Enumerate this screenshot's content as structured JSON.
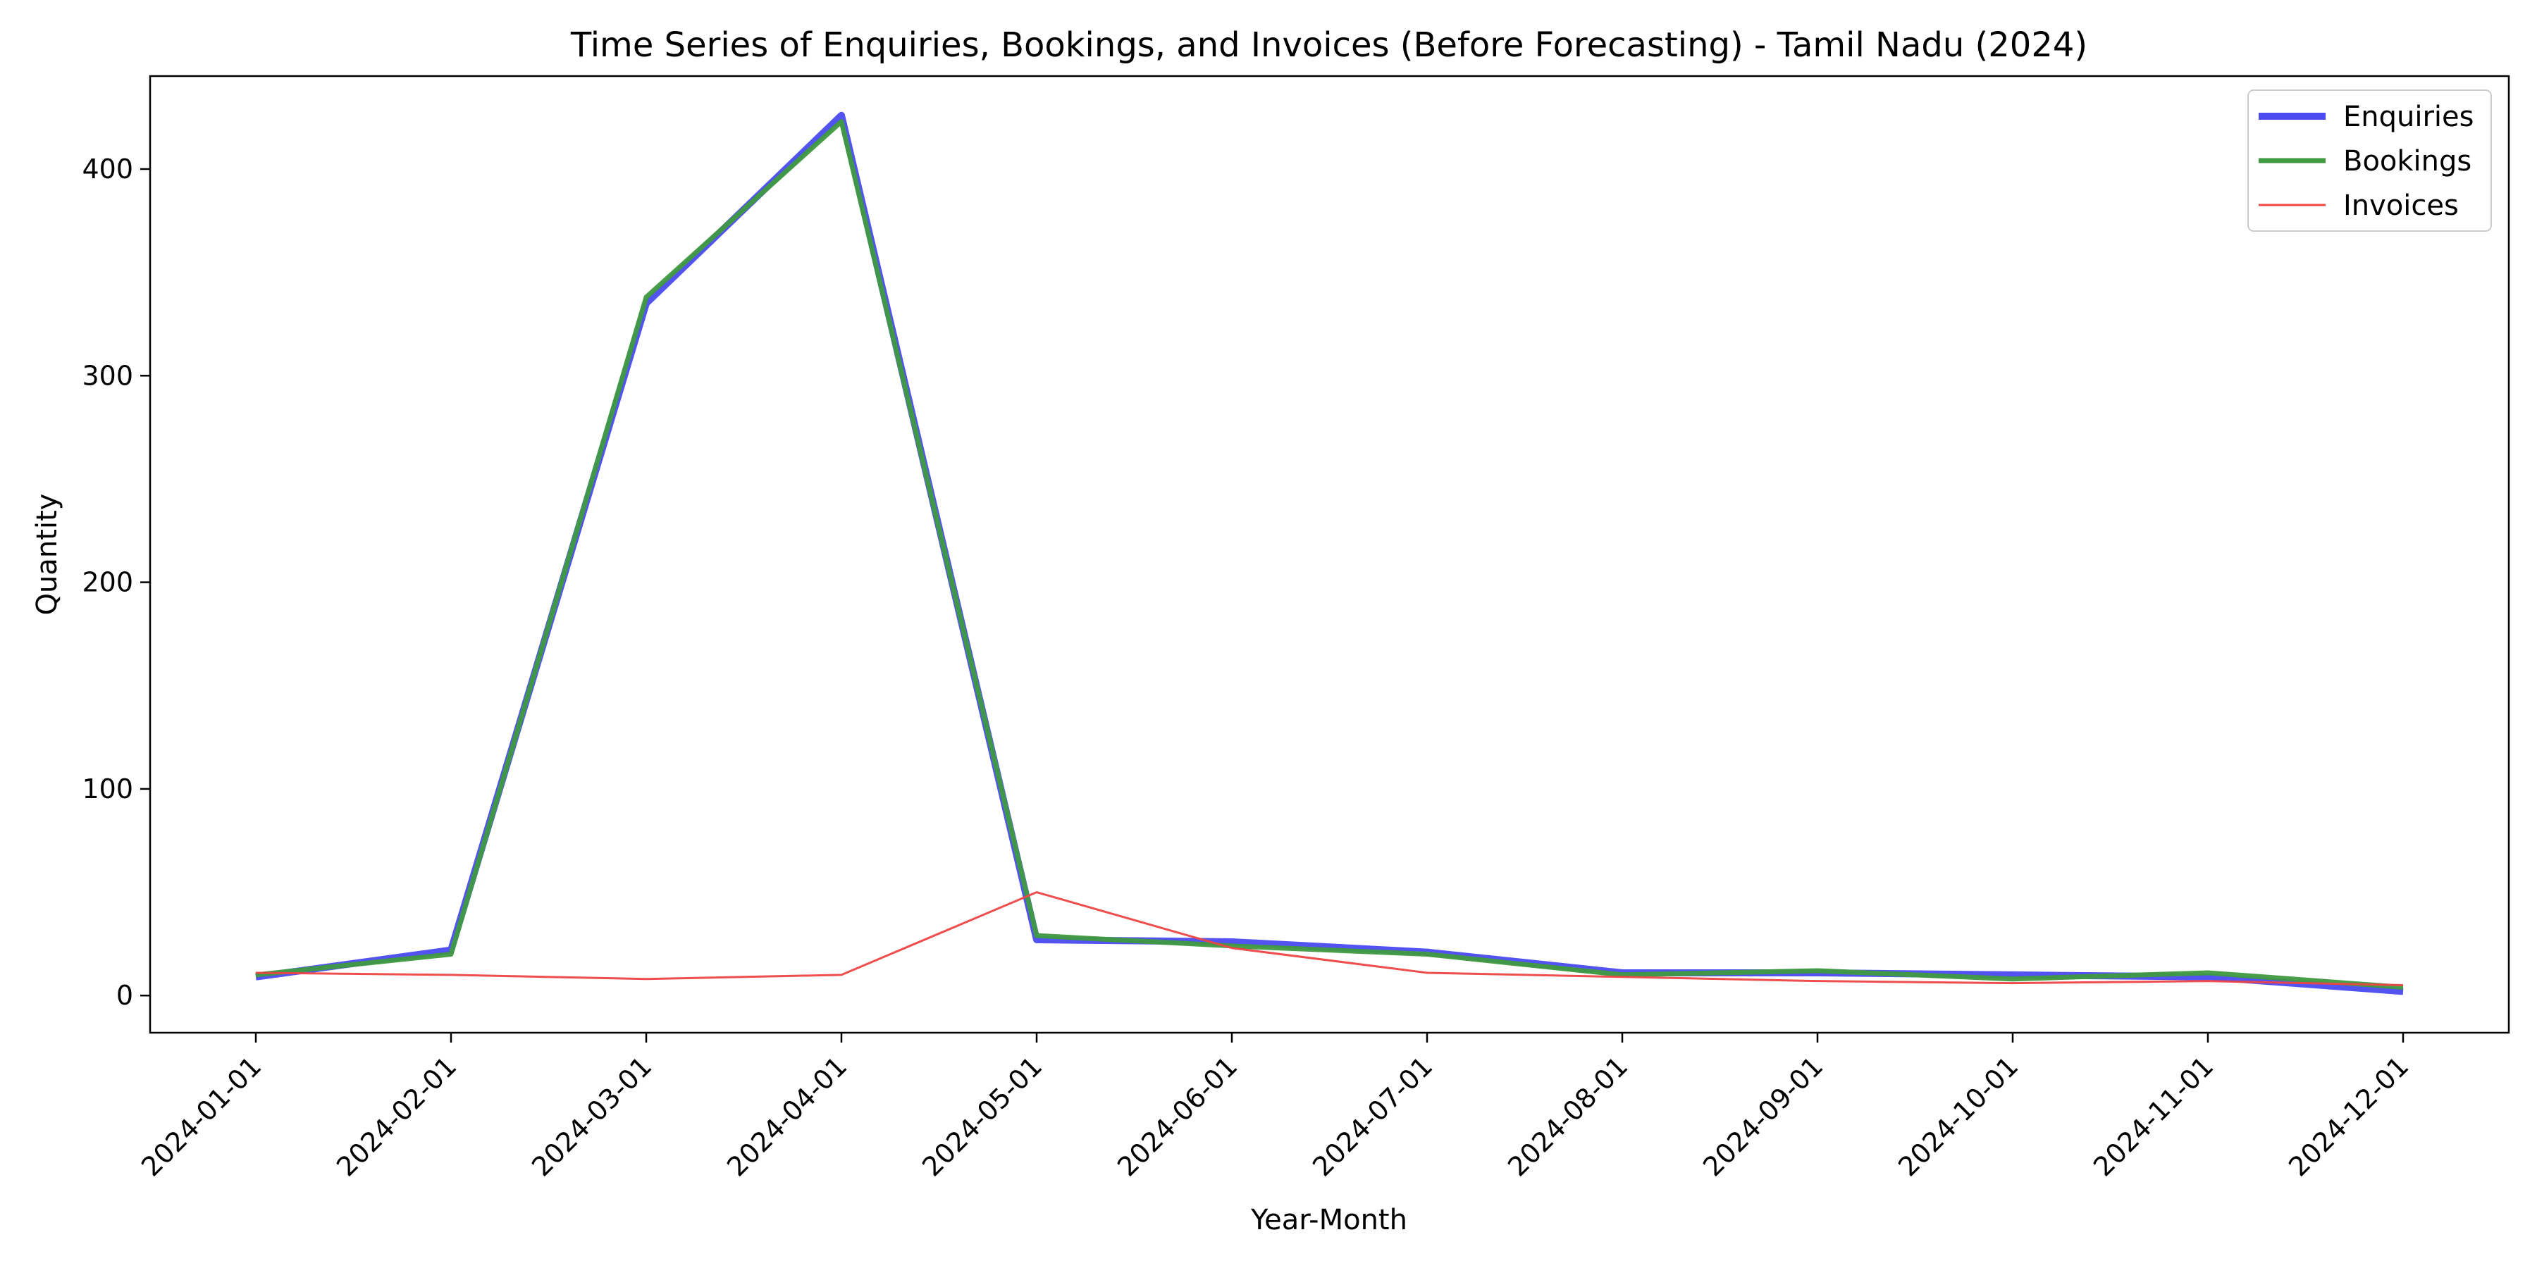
{
  "chart_data": {
    "type": "line",
    "title": "Time Series of Enquiries, Bookings, and Invoices (Before Forecasting) - Tamil Nadu (2024)",
    "xlabel": "Year-Month",
    "ylabel": "Quantity",
    "categories": [
      "2024-01-01",
      "2024-02-01",
      "2024-03-01",
      "2024-04-01",
      "2024-05-01",
      "2024-06-01",
      "2024-07-01",
      "2024-08-01",
      "2024-09-01",
      "2024-10-01",
      "2024-11-01",
      "2024-12-01"
    ],
    "ylim": [
      -18,
      445
    ],
    "yticks": [
      0,
      100,
      200,
      300,
      400
    ],
    "grid": false,
    "legend_position": "top-right",
    "series": [
      {
        "name": "Enquiries",
        "color": "#4a4af0",
        "values": [
          9,
          22,
          335,
          426,
          27,
          26,
          21,
          11,
          11,
          10,
          9,
          2
        ]
      },
      {
        "name": "Bookings",
        "color": "#3f9a3f",
        "values": [
          10,
          20,
          338,
          423,
          29,
          24,
          20,
          10,
          12,
          8,
          11,
          4
        ]
      },
      {
        "name": "Invoices",
        "color": "#ee4444",
        "values": [
          11,
          10,
          8,
          10,
          50,
          23,
          11,
          9,
          7,
          6,
          7,
          5
        ]
      }
    ]
  }
}
